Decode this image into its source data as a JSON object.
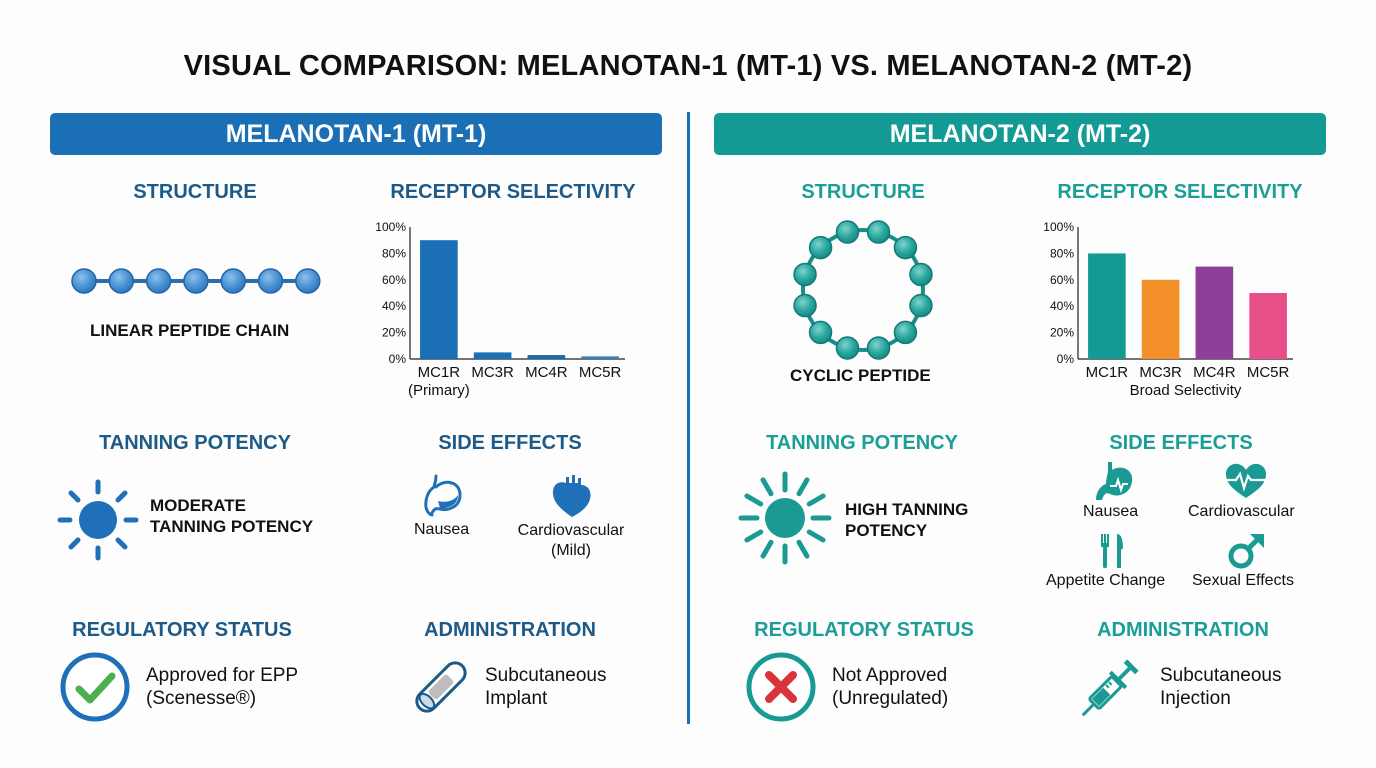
{
  "title": "VISUAL COMPARISON: MELANOTAN-1 (MT-1) VS. MELANOTAN-2 (MT-2)",
  "colors": {
    "mt1_primary": "#1a6fb5",
    "mt1_heading": "#1d5a88",
    "mt2_primary": "#149a94",
    "mt2_heading": "#1b9e98",
    "approved_check": "#4caf50",
    "not_approved_x": "#d9343a"
  },
  "mt1": {
    "banner": "MELANOTAN-1 (MT-1)",
    "structure": {
      "heading": "STRUCTURE",
      "icon": "linear-peptide-chain-icon",
      "label": "LINEAR PEPTIDE CHAIN"
    },
    "receptor": {
      "heading": "RECEPTOR SELECTIVITY"
    },
    "tanning": {
      "heading": "TANNING POTENCY",
      "icon": "sun-icon",
      "line1": "MODERATE",
      "line2": "TANNING POTENCY"
    },
    "side_effects": {
      "heading": "SIDE EFFECTS",
      "items": [
        {
          "icon": "stomach-icon",
          "line1": "Nausea",
          "line2": ""
        },
        {
          "icon": "heart-icon",
          "line1": "Cardiovascular",
          "line2": "(Mild)"
        }
      ]
    },
    "regulatory": {
      "heading": "REGULATORY STATUS",
      "icon": "check-circle-icon",
      "line1": "Approved for EPP",
      "line2": "(Scenesse®)"
    },
    "administration": {
      "heading": "ADMINISTRATION",
      "icon": "implant-icon",
      "line1": "Subcutaneous",
      "line2": "Implant"
    }
  },
  "mt2": {
    "banner": "MELANOTAN-2 (MT-2)",
    "structure": {
      "heading": "STRUCTURE",
      "icon": "cyclic-peptide-icon",
      "label": "CYCLIC PEPTIDE"
    },
    "receptor": {
      "heading": "RECEPTOR SELECTIVITY"
    },
    "tanning": {
      "heading": "TANNING POTENCY",
      "icon": "sun-icon",
      "line1": "HIGH TANNING",
      "line2": "POTENCY"
    },
    "side_effects": {
      "heading": "SIDE EFFECTS",
      "items": [
        {
          "icon": "stomach-icon",
          "label": "Nausea"
        },
        {
          "icon": "heart-pulse-icon",
          "label": "Cardiovascular"
        },
        {
          "icon": "fork-knife-icon",
          "label": "Appetite Change"
        },
        {
          "icon": "male-symbol-icon",
          "label": "Sexual Effects"
        }
      ]
    },
    "regulatory": {
      "heading": "REGULATORY STATUS",
      "icon": "x-circle-icon",
      "line1": "Not Approved",
      "line2": "(Unregulated)"
    },
    "administration": {
      "heading": "ADMINISTRATION",
      "icon": "syringe-icon",
      "line1": "Subcutaneous",
      "line2": "Injection"
    }
  },
  "chart_data": [
    {
      "type": "bar",
      "title": "RECEPTOR SELECTIVITY",
      "categories": [
        "MC1R",
        "MC3R",
        "MC4R",
        "MC5R"
      ],
      "category_sublabels": [
        "(Primary)",
        "",
        "",
        ""
      ],
      "values": [
        90,
        5,
        3,
        2
      ],
      "colors": [
        "#1a6fb5",
        "#1a6fb5",
        "#1e6aa8",
        "#3a80bd"
      ],
      "xlabel": "",
      "ylabel": "",
      "yticks": [
        "0%",
        "20%",
        "40%",
        "60%",
        "80%",
        "100%"
      ],
      "ylim": [
        0,
        100
      ],
      "grid": false
    },
    {
      "type": "bar",
      "title": "RECEPTOR SELECTIVITY",
      "categories": [
        "MC1R",
        "MC3R",
        "MC4R",
        "MC5R"
      ],
      "values": [
        80,
        60,
        70,
        50
      ],
      "colors": [
        "#149a94",
        "#f4902a",
        "#8e3f98",
        "#e8508a"
      ],
      "xlabel": "Broad Selectivity",
      "ylabel": "",
      "yticks": [
        "0%",
        "20%",
        "40%",
        "60%",
        "80%",
        "100%"
      ],
      "ylim": [
        0,
        100
      ],
      "grid": false
    }
  ]
}
